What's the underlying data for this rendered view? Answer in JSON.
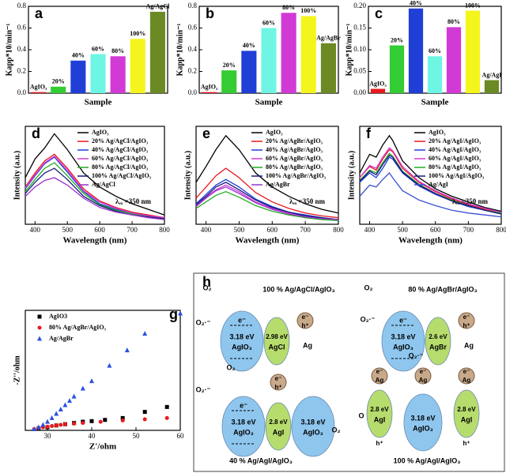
{
  "chart_data": [
    {
      "type": "bar",
      "panel": "a",
      "xlabel": "Sample",
      "ylabel": "Kapp*10/min⁻¹",
      "categories": [
        "AgIO₃",
        "20%",
        "40%",
        "60%",
        "80%",
        "100%",
        "Ag/AgCl"
      ],
      "values": [
        0.01,
        0.06,
        0.3,
        0.36,
        0.34,
        0.5,
        0.75
      ],
      "colors": [
        "#e8191e",
        "#33cc33",
        "#1f3fd6",
        "#6ff5e4",
        "#d23ad6",
        "#f4f51c",
        "#6b8a24"
      ],
      "ylim": [
        0,
        0.8
      ],
      "yticks": [
        {
          "value": 0,
          "label": "0.0"
        },
        {
          "value": 0.2,
          "label": "0.2"
        },
        {
          "value": 0.4,
          "label": "0.4"
        },
        {
          "value": 0.6,
          "label": "0.6"
        },
        {
          "value": 0.8,
          "label": "0.8"
        }
      ]
    },
    {
      "type": "bar",
      "panel": "b",
      "xlabel": "Sample",
      "ylabel": "Kapp*10/min⁻¹",
      "categories": [
        "AgIO₃",
        "20%",
        "40%",
        "60%",
        "80%",
        "100%",
        "Ag/AgBr"
      ],
      "values": [
        0.01,
        0.21,
        0.39,
        0.6,
        0.74,
        0.71,
        0.46
      ],
      "colors": [
        "#e8191e",
        "#33cc33",
        "#1f3fd6",
        "#6ff5e4",
        "#d23ad6",
        "#f4f51c",
        "#6b8a24"
      ],
      "ylim": [
        0,
        0.8
      ],
      "yticks": [
        {
          "value": 0,
          "label": "0.0"
        },
        {
          "value": 0.2,
          "label": "0.2"
        },
        {
          "value": 0.4,
          "label": "0.4"
        },
        {
          "value": 0.6,
          "label": "0.6"
        },
        {
          "value": 0.8,
          "label": "0.8"
        }
      ]
    },
    {
      "type": "bar",
      "panel": "c",
      "xlabel": "Sample",
      "ylabel": "Kapp*10/min⁻¹",
      "categories": [
        "AgIO₃",
        "20%",
        "40%",
        "60%",
        "80%",
        "100%",
        "Ag/AgI"
      ],
      "values": [
        0.01,
        0.11,
        0.195,
        0.085,
        0.152,
        0.19,
        0.03
      ],
      "colors": [
        "#e8191e",
        "#33cc33",
        "#1f3fd6",
        "#6ff5e4",
        "#d23ad6",
        "#f4f51c",
        "#6b8a24"
      ],
      "ylim": [
        0,
        0.2
      ],
      "yticks": [
        {
          "value": 0,
          "label": "0.00"
        },
        {
          "value": 0.05,
          "label": "0.05"
        },
        {
          "value": 0.1,
          "label": "0.10"
        },
        {
          "value": 0.15,
          "label": "0.15"
        },
        {
          "value": 0.2,
          "label": "0.20"
        }
      ]
    },
    {
      "type": "line",
      "panel": "d",
      "xlabel": "Wavelength (nm)",
      "ylabel": "Intensity (a.u.)",
      "annotation": "λₑₓ =350 nm",
      "legend": "upper right",
      "x": [
        370,
        400,
        430,
        460,
        500,
        550,
        600,
        650,
        700,
        750,
        800
      ],
      "series": [
        {
          "name": "AgIO₃",
          "color": "#000000",
          "values": [
            0.5,
            0.7,
            0.82,
            0.97,
            0.8,
            0.55,
            0.4,
            0.3,
            0.22,
            0.16,
            0.1
          ]
        },
        {
          "name": "20% Ag/AgCl/AgIO₃",
          "color": "#e8191e",
          "values": [
            0.4,
            0.55,
            0.68,
            0.75,
            0.6,
            0.38,
            0.25,
            0.18,
            0.13,
            0.1,
            0.07
          ]
        },
        {
          "name": "40% Ag/AgCl/AgIO₃",
          "color": "#1f3fd6",
          "values": [
            0.38,
            0.52,
            0.65,
            0.72,
            0.56,
            0.35,
            0.22,
            0.16,
            0.12,
            0.09,
            0.06
          ]
        },
        {
          "name": "60% Ag/AgCl/AgIO₃",
          "color": "#d23ad6",
          "values": [
            0.39,
            0.53,
            0.66,
            0.73,
            0.58,
            0.36,
            0.24,
            0.17,
            0.12,
            0.09,
            0.07
          ]
        },
        {
          "name": "80% Ag/AgCl/AgIO₃",
          "color": "#22aa22",
          "values": [
            0.35,
            0.48,
            0.6,
            0.66,
            0.52,
            0.33,
            0.21,
            0.15,
            0.11,
            0.08,
            0.06
          ]
        },
        {
          "name": "100% Ag/AgCl/AgIO₃",
          "color": "#1a1a80",
          "values": [
            0.33,
            0.45,
            0.55,
            0.6,
            0.48,
            0.3,
            0.2,
            0.14,
            0.1,
            0.08,
            0.06
          ]
        },
        {
          "name": "Ag/AgCl",
          "color": "#9933cc",
          "values": [
            0.3,
            0.4,
            0.47,
            0.5,
            0.42,
            0.28,
            0.18,
            0.13,
            0.1,
            0.07,
            0.05
          ]
        }
      ],
      "xlim": [
        370,
        800
      ],
      "xticks": [
        400,
        500,
        600,
        700,
        800
      ],
      "ylim": [
        0,
        1.05
      ]
    },
    {
      "type": "line",
      "panel": "e",
      "xlabel": "Wavelength (nm)",
      "ylabel": "Intensity (a.u.)",
      "annotation": "λₑₓ =350 nm",
      "legend": "upper right",
      "x": [
        370,
        400,
        430,
        460,
        500,
        550,
        600,
        650,
        700,
        750,
        800
      ],
      "series": [
        {
          "name": "AgIO₃",
          "color": "#000000",
          "values": [
            0.45,
            0.62,
            0.8,
            0.95,
            0.8,
            0.55,
            0.4,
            0.3,
            0.22,
            0.16,
            0.12
          ]
        },
        {
          "name": "20% Ag/AgBr/AgIO₃",
          "color": "#e8191e",
          "values": [
            0.28,
            0.4,
            0.52,
            0.6,
            0.5,
            0.34,
            0.24,
            0.17,
            0.12,
            0.09,
            0.07
          ]
        },
        {
          "name": "40% Ag/AgBr/AgIO₃",
          "color": "#1f3fd6",
          "values": [
            0.22,
            0.32,
            0.42,
            0.48,
            0.4,
            0.27,
            0.19,
            0.13,
            0.1,
            0.07,
            0.05
          ]
        },
        {
          "name": "60% Ag/AgBr/AgIO₃",
          "color": "#d23ad6",
          "values": [
            0.2,
            0.29,
            0.37,
            0.42,
            0.35,
            0.24,
            0.17,
            0.12,
            0.09,
            0.06,
            0.05
          ]
        },
        {
          "name": "80% Ag/AgBr/AgIO₃",
          "color": "#22aa22",
          "values": [
            0.17,
            0.24,
            0.31,
            0.35,
            0.29,
            0.2,
            0.14,
            0.1,
            0.07,
            0.05,
            0.04
          ]
        },
        {
          "name": "100% Ag/AgBr/AgIO₃",
          "color": "#1a1a80",
          "values": [
            0.21,
            0.3,
            0.4,
            0.45,
            0.37,
            0.26,
            0.18,
            0.13,
            0.09,
            0.07,
            0.05
          ]
        },
        {
          "name": "Ag/AgBr",
          "color": "#9933cc",
          "values": [
            0.19,
            0.28,
            0.36,
            0.4,
            0.33,
            0.23,
            0.16,
            0.11,
            0.08,
            0.06,
            0.05
          ]
        }
      ],
      "xlim": [
        370,
        800
      ],
      "xticks": [
        400,
        500,
        600,
        700,
        800
      ],
      "ylim": [
        0,
        1.05
      ]
    },
    {
      "type": "line",
      "panel": "f",
      "xlabel": "Wavelength (nm)",
      "ylabel": "Intensity (a.u.)",
      "annotation": "λₑₓ =350 nm",
      "legend": "upper right",
      "x": [
        370,
        400,
        420,
        440,
        460,
        470,
        500,
        550,
        600,
        650,
        700,
        750,
        800
      ],
      "series": [
        {
          "name": "AgIO₃",
          "color": "#000000",
          "values": [
            0.55,
            0.75,
            0.72,
            0.85,
            0.95,
            0.9,
            0.68,
            0.5,
            0.38,
            0.3,
            0.24,
            0.18,
            0.14
          ]
        },
        {
          "name": "20% Ag/AgI/AgIO₃",
          "color": "#e8191e",
          "values": [
            0.5,
            0.62,
            0.58,
            0.7,
            0.8,
            0.78,
            0.6,
            0.45,
            0.35,
            0.27,
            0.21,
            0.16,
            0.12
          ]
        },
        {
          "name": "40% Ag/AgI/AgIO₃",
          "color": "#1f3fd6",
          "values": [
            0.45,
            0.55,
            0.5,
            0.6,
            0.72,
            0.7,
            0.55,
            0.41,
            0.32,
            0.25,
            0.19,
            0.15,
            0.11
          ]
        },
        {
          "name": "60% Ag/AgI/AgIO₃",
          "color": "#d23ad6",
          "values": [
            0.5,
            0.63,
            0.6,
            0.72,
            0.82,
            0.79,
            0.62,
            0.46,
            0.36,
            0.28,
            0.22,
            0.17,
            0.13
          ]
        },
        {
          "name": "80% Ag/AgI/AgIO₃",
          "color": "#22aa22",
          "values": [
            0.47,
            0.58,
            0.55,
            0.66,
            0.76,
            0.73,
            0.57,
            0.43,
            0.33,
            0.26,
            0.2,
            0.15,
            0.12
          ]
        },
        {
          "name": "100% Ag/AgI/AgIO₃",
          "color": "#1a1a80",
          "values": [
            0.46,
            0.57,
            0.53,
            0.64,
            0.74,
            0.72,
            0.56,
            0.42,
            0.33,
            0.25,
            0.2,
            0.15,
            0.11
          ]
        },
        {
          "name": "Ag/AgI",
          "color": "#3a4fcf",
          "values": [
            0.3,
            0.42,
            0.4,
            0.48,
            0.55,
            0.5,
            0.36,
            0.26,
            0.2,
            0.15,
            0.12,
            0.1,
            0.08
          ]
        }
      ],
      "xlim": [
        370,
        800
      ],
      "xticks": [
        400,
        500,
        600,
        700,
        800
      ],
      "ylim": [
        0,
        1.05
      ]
    },
    {
      "type": "scatter",
      "panel": "g",
      "xlabel": "Z'/ohm",
      "ylabel": "-Z''/ohm",
      "legend": "upper left",
      "series": [
        {
          "name": "AgIO3",
          "color": "#000000",
          "marker": "square",
          "x": [
            28,
            30,
            32,
            34,
            36,
            38,
            40,
            43,
            47,
            52,
            57
          ],
          "values": [
            3,
            5,
            8,
            10,
            12,
            14,
            15,
            17,
            20,
            30,
            38
          ]
        },
        {
          "name": "80% Ag/AgBr/AgIO₃",
          "color": "#e8191e",
          "marker": "circle",
          "x": [
            27,
            28,
            29,
            30,
            31,
            32,
            33,
            34,
            36,
            38,
            42,
            47,
            52,
            57
          ],
          "values": [
            2,
            4,
            5,
            6,
            7,
            8,
            9,
            10,
            11,
            12,
            14,
            16,
            18,
            20
          ]
        },
        {
          "name": "Ag/AgBr",
          "color": "#2a50e0",
          "marker": "triangle",
          "x": [
            27,
            28,
            29,
            30,
            31,
            32,
            33,
            34,
            35,
            36,
            38,
            40,
            44,
            48,
            52,
            60
          ],
          "values": [
            2,
            5,
            9,
            14,
            20,
            27,
            34,
            41,
            48,
            55,
            68,
            80,
            105,
            130,
            157,
            190
          ]
        }
      ],
      "xlim": [
        25,
        60
      ],
      "xticks": [
        30,
        40,
        50,
        60
      ],
      "ylim": [
        0,
        195
      ]
    }
  ],
  "diagram": {
    "panel": "h",
    "titles": [
      "100 % Ag/AgCl/AgIO₃",
      "80 % Ag/AgBr/AgIO₃",
      "40 % Ag/AgI/AgIO₃",
      "100 % Ag/AgI/AgIO₃"
    ],
    "energies": [
      "3.18 eV",
      "2.98 eV",
      "2.6 eV",
      "2.8 eV"
    ],
    "materials": [
      "AgIO₃",
      "AgCl",
      "AgBr",
      "AgI",
      "Ag"
    ],
    "species": [
      "O₂",
      "O₂·⁻",
      "e⁻",
      "h⁺",
      "O"
    ]
  }
}
